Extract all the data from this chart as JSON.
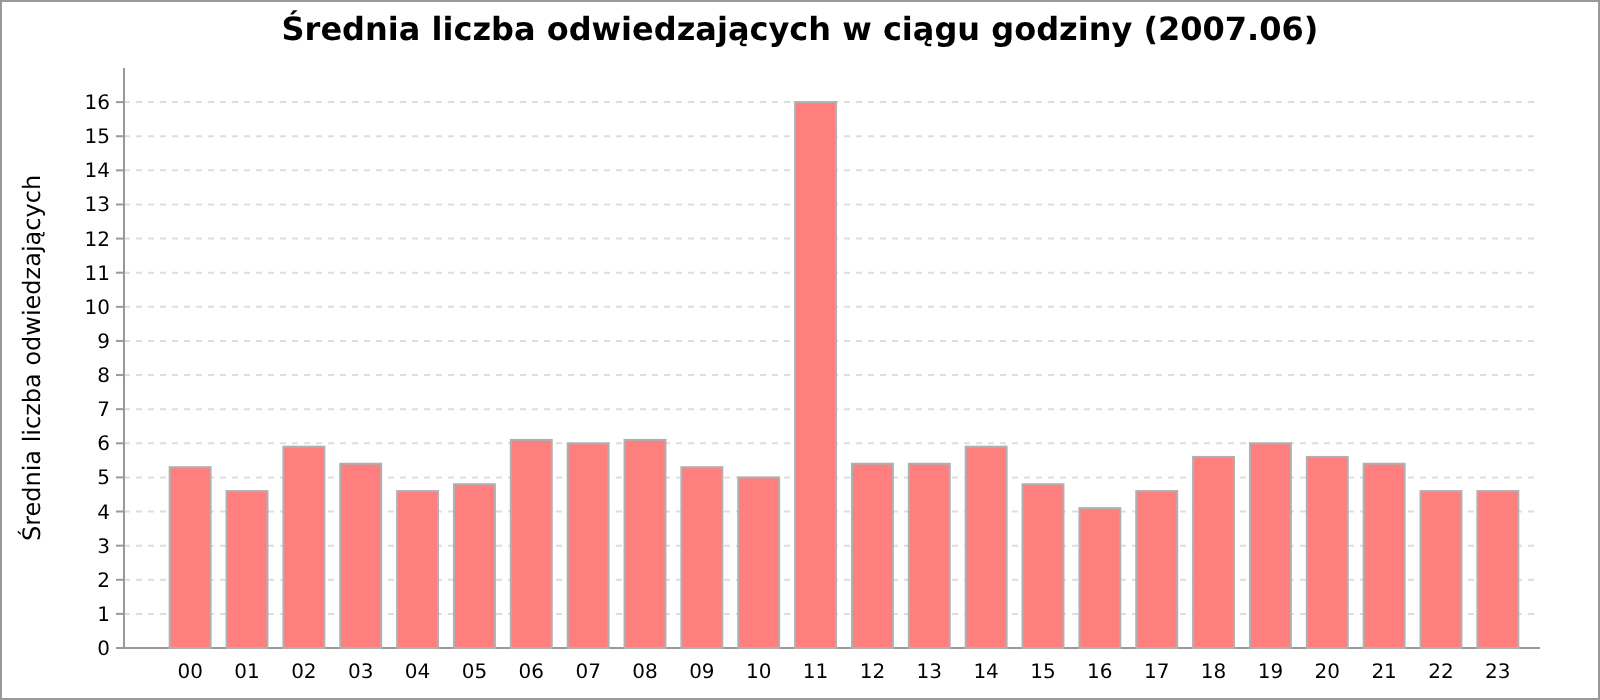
{
  "chart_data": {
    "type": "bar",
    "title": "Średnia liczba odwiedzających w ciągu godziny (2007.06)",
    "ylabel": "Średnia liczba odwiedzających",
    "categories": [
      "00",
      "01",
      "02",
      "03",
      "04",
      "05",
      "06",
      "07",
      "08",
      "09",
      "10",
      "11",
      "12",
      "13",
      "14",
      "15",
      "16",
      "17",
      "18",
      "19",
      "20",
      "21",
      "22",
      "23"
    ],
    "values": [
      5.3,
      4.6,
      5.9,
      5.4,
      4.6,
      4.8,
      6.1,
      6.0,
      6.1,
      5.3,
      5.0,
      16.0,
      5.4,
      5.4,
      5.9,
      4.8,
      4.1,
      4.6,
      5.6,
      6.0,
      5.6,
      5.4,
      4.6,
      4.6
    ],
    "color": "#ff7f7f",
    "ylim": [
      0,
      17
    ],
    "yticks": [
      0,
      1,
      2,
      3,
      4,
      5,
      6,
      7,
      8,
      9,
      10,
      11,
      12,
      13,
      14,
      15,
      16
    ],
    "grid": "y"
  }
}
